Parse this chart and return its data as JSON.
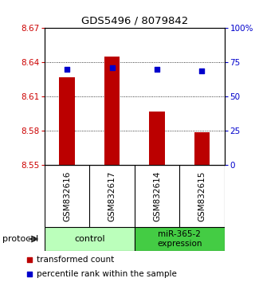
{
  "title": "GDS5496 / 8079842",
  "samples": [
    "GSM832616",
    "GSM832617",
    "GSM832614",
    "GSM832615"
  ],
  "bar_values": [
    8.627,
    8.645,
    8.597,
    8.579
  ],
  "bar_base": 8.55,
  "percentile_values": [
    70,
    71,
    70,
    69
  ],
  "ylim": [
    8.55,
    8.67
  ],
  "yticks_left": [
    8.55,
    8.58,
    8.61,
    8.64,
    8.67
  ],
  "ytick_labels_left": [
    "8.55",
    "8.58",
    "8.61",
    "8.64",
    "8.67"
  ],
  "yticks_right_pct": [
    0,
    25,
    50,
    75,
    100
  ],
  "ytick_labels_right": [
    "0",
    "25",
    "50",
    "75",
    "100%"
  ],
  "bar_color": "#bb0000",
  "dot_color": "#0000cc",
  "bg_color": "#ffffff",
  "sample_bg": "#c8c8c8",
  "control_bg": "#bbffbb",
  "mir_bg": "#44cc44",
  "left_tick_color": "#cc0000",
  "right_tick_color": "#0000cc",
  "protocol_label": "protocol",
  "legend_red": "transformed count",
  "legend_blue": "percentile rank within the sample",
  "bar_width": 0.35
}
